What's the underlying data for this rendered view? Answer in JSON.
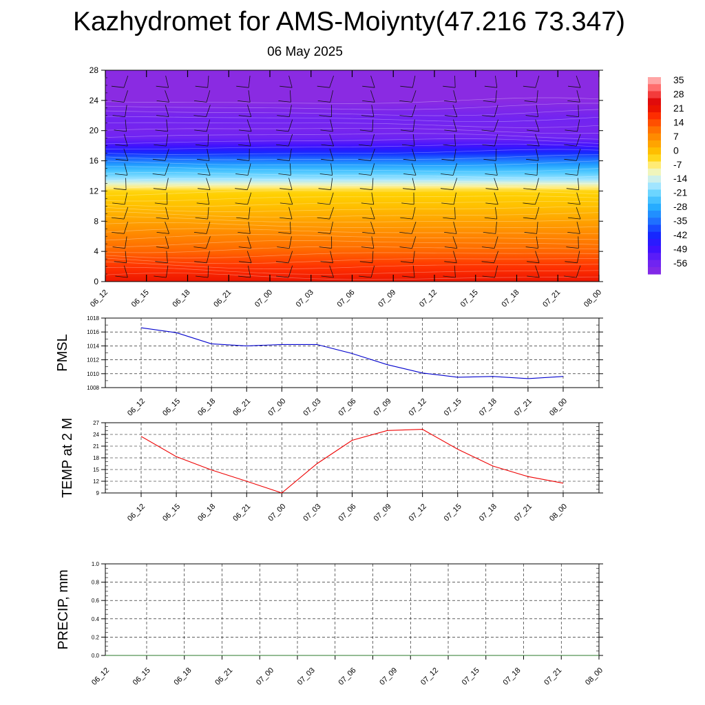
{
  "header": {
    "title": "Kazhydromet for AMS-Moiynty(47.216 73.347)",
    "subtitle": "06 May 2025"
  },
  "chart_data": [
    {
      "type": "heatmap",
      "name": "vertical-temperature-wind-section",
      "title": "",
      "xlabel": "",
      "ylabel": "",
      "x_ticks": [
        "06_12",
        "06_15",
        "06_18",
        "06_21",
        "07_00",
        "07_03",
        "07_06",
        "07_09",
        "07_12",
        "07_15",
        "07_18",
        "07_21",
        "08_00"
      ],
      "y_ticks": [
        0,
        4,
        8,
        12,
        16,
        20,
        24,
        28
      ],
      "ylim": [
        0,
        28
      ],
      "colorbar": {
        "labels": [
          "35",
          "28",
          "21",
          "14",
          "7",
          "0",
          "-7",
          "-14",
          "-21",
          "-28",
          "-35",
          "-42",
          "-49",
          "-56"
        ],
        "range": [
          -60,
          38
        ],
        "colors": [
          "#8a2be2",
          "#6a22f5",
          "#3a10ff",
          "#1428ff",
          "#1f6fff",
          "#22a8ff",
          "#5cd0ff",
          "#bfeeff",
          "#fff7a8",
          "#ffd000",
          "#ffa000",
          "#ff7000",
          "#ff3000",
          "#dd0000",
          "#ff5a5a",
          "#ffc0c0"
        ]
      },
      "temperature_profile": {
        "levels": [
          0,
          2,
          4,
          6,
          8,
          10,
          12,
          12.7,
          13.5,
          15,
          16.5,
          18,
          19,
          20,
          21.5,
          23,
          24,
          26,
          28
        ],
        "values": [
          22,
          18,
          13,
          9,
          5,
          1,
          -2,
          -8,
          -16,
          -25,
          -36,
          -48,
          -54,
          -56,
          -55,
          -58,
          -60,
          -60,
          -60
        ]
      },
      "grid": false
    },
    {
      "type": "line",
      "name": "PMSL",
      "title": "",
      "xlabel": "",
      "ylabel": "PMSL",
      "x": [
        "06_12",
        "06_15",
        "06_18",
        "06_21",
        "07_00",
        "07_03",
        "07_06",
        "07_09",
        "07_12",
        "07_15",
        "07_18",
        "07_21",
        "08_00"
      ],
      "series": [
        {
          "color": "#0000cc",
          "values": [
            1016.6,
            1015.9,
            1014.3,
            1014.0,
            1014.2,
            1014.2,
            1012.9,
            1011.3,
            1010.1,
            1009.5,
            1009.6,
            1009.3,
            1009.6
          ]
        }
      ],
      "ylim": [
        1008,
        1018
      ],
      "y_ticks": [
        1008,
        1010,
        1012,
        1014,
        1016,
        1018
      ],
      "grid": true
    },
    {
      "type": "line",
      "name": "TEMP at 2 M",
      "title": "",
      "xlabel": "",
      "ylabel": "TEMP at 2 M",
      "x": [
        "06_12",
        "06_15",
        "06_18",
        "06_21",
        "07_00",
        "07_03",
        "07_06",
        "07_09",
        "07_12",
        "07_15",
        "07_18",
        "07_21",
        "08_00"
      ],
      "series": [
        {
          "color": "#ee0000",
          "values": [
            23.5,
            18.3,
            14.9,
            12.0,
            9.0,
            16.5,
            22.5,
            25.0,
            25.3,
            20.2,
            15.9,
            13.2,
            11.5
          ]
        }
      ],
      "ylim": [
        9,
        27
      ],
      "y_ticks": [
        9,
        12,
        15,
        18,
        21,
        24,
        27
      ],
      "grid": true
    },
    {
      "type": "line",
      "name": "PRECIP, mm",
      "title": "",
      "xlabel": "",
      "ylabel": "PRECIP, mm",
      "x": [
        "06_12",
        "06_15",
        "06_18",
        "06_21",
        "07_00",
        "07_03",
        "07_06",
        "07_09",
        "07_12",
        "07_15",
        "07_18",
        "07_21",
        "08_00"
      ],
      "series": [
        {
          "color": "#2a7a2a",
          "values": [
            0,
            0,
            0,
            0,
            0,
            0,
            0,
            0,
            0,
            0,
            0,
            0,
            0
          ]
        }
      ],
      "ylim": [
        0.0,
        1.0
      ],
      "y_ticks": [
        "0.0",
        "0.2",
        "0.4",
        "0.6",
        "0.8",
        "1.0"
      ],
      "grid": true
    }
  ]
}
